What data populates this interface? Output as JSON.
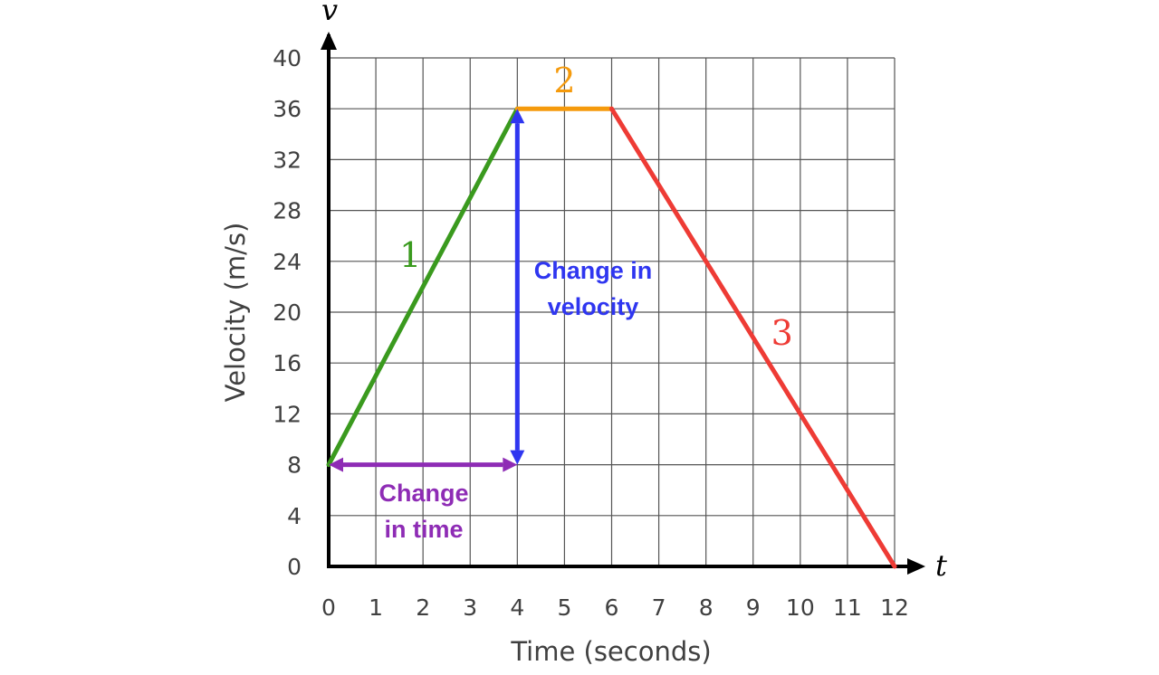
{
  "chart_data": {
    "type": "line",
    "xlabel": "Time (seconds)",
    "ylabel": "Velocity (m/s)",
    "x_axis_symbol": "v",
    "t_axis_symbol": "t",
    "xlim": [
      0,
      12
    ],
    "ylim": [
      0,
      40
    ],
    "x_ticks": [
      0,
      1,
      2,
      3,
      4,
      5,
      6,
      7,
      8,
      9,
      10,
      11,
      12
    ],
    "y_ticks": [
      0,
      4,
      8,
      12,
      16,
      20,
      24,
      28,
      32,
      36,
      40
    ],
    "grid": true,
    "segments": [
      {
        "label": "1",
        "color": "#3a9a1e",
        "points": [
          [
            0,
            8
          ],
          [
            4,
            36
          ]
        ]
      },
      {
        "label": "2",
        "color": "#f59a0c",
        "points": [
          [
            4,
            36
          ],
          [
            6,
            36
          ]
        ]
      },
      {
        "label": "3",
        "color": "#ee3b35",
        "points": [
          [
            6,
            36
          ],
          [
            12,
            0
          ]
        ]
      }
    ],
    "annotations": [
      {
        "lines": [
          "Change in",
          "velocity"
        ],
        "color": "#2f36f0",
        "arrow": {
          "from": [
            4,
            8
          ],
          "to": [
            4,
            36
          ]
        }
      },
      {
        "lines": [
          "Change",
          "in time"
        ],
        "color": "#8e2cb5",
        "arrow": {
          "from": [
            0,
            8
          ],
          "to": [
            4,
            8
          ]
        }
      }
    ]
  }
}
